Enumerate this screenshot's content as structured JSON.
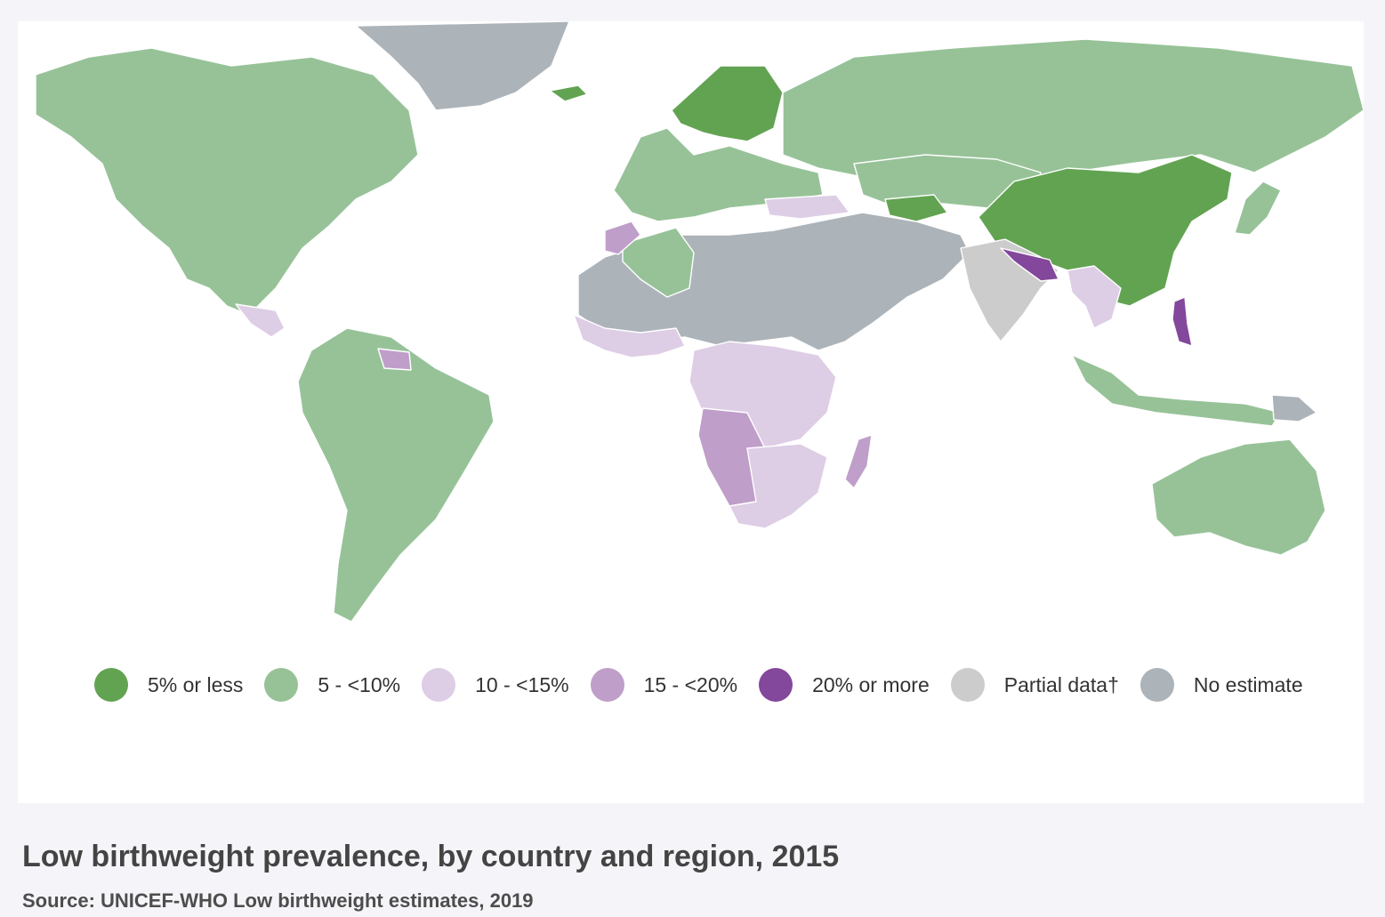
{
  "legend": {
    "items": [
      {
        "label": "5% or less",
        "color": "#62a352"
      },
      {
        "label": "5 - <10%",
        "color": "#97c298"
      },
      {
        "label": "10 - <15%",
        "color": "#ddcde5"
      },
      {
        "label": "15 - <20%",
        "color": "#bf9ec9"
      },
      {
        "label": "20% or more",
        "color": "#83479b"
      },
      {
        "label": "Partial data†",
        "color": "#cccccc"
      },
      {
        "label": "No estimate",
        "color": "#acb3b9"
      }
    ]
  },
  "caption": {
    "title": "Low birthweight prevalence, by country and region, 2015",
    "source": "Source: UNICEF-WHO Low birthweight estimates, 2019"
  },
  "map": {
    "regions": [
      {
        "name": "north-america",
        "category": "5 - <10%"
      },
      {
        "name": "greenland",
        "category": "No estimate"
      },
      {
        "name": "iceland",
        "category": "5% or less"
      },
      {
        "name": "central-america",
        "category": "10 - <15%"
      },
      {
        "name": "south-america",
        "category": "5 - <10%"
      },
      {
        "name": "guyana-suriname",
        "category": "15 - <20%"
      },
      {
        "name": "western-europe",
        "category": "5 - <10%"
      },
      {
        "name": "scandinavia",
        "category": "5% or less"
      },
      {
        "name": "russia",
        "category": "5 - <10%"
      },
      {
        "name": "turkey",
        "category": "10 - <15%"
      },
      {
        "name": "north-africa-middle-east",
        "category": "No estimate"
      },
      {
        "name": "algeria",
        "category": "5 - <10%"
      },
      {
        "name": "morocco",
        "category": "15 - <20%"
      },
      {
        "name": "west-africa-coast",
        "category": "10 - <15%"
      },
      {
        "name": "central-east-africa",
        "category": "10 - <15%"
      },
      {
        "name": "angola-namibia",
        "category": "15 - <20%"
      },
      {
        "name": "southern-africa",
        "category": "10 - <15%"
      },
      {
        "name": "madagascar",
        "category": "15 - <20%"
      },
      {
        "name": "central-asia",
        "category": "5 - <10%"
      },
      {
        "name": "turkmenistan",
        "category": "5% or less"
      },
      {
        "name": "china",
        "category": "5% or less"
      },
      {
        "name": "india",
        "category": "Partial data†"
      },
      {
        "name": "nepal-bangladesh",
        "category": "20% or more"
      },
      {
        "name": "southeast-asia",
        "category": "10 - <15%"
      },
      {
        "name": "philippines",
        "category": "20% or more"
      },
      {
        "name": "indonesia",
        "category": "5 - <10%"
      },
      {
        "name": "papua-new-guinea",
        "category": "No estimate"
      },
      {
        "name": "japan",
        "category": "5 - <10%"
      },
      {
        "name": "australia",
        "category": "5 - <10%"
      }
    ]
  }
}
